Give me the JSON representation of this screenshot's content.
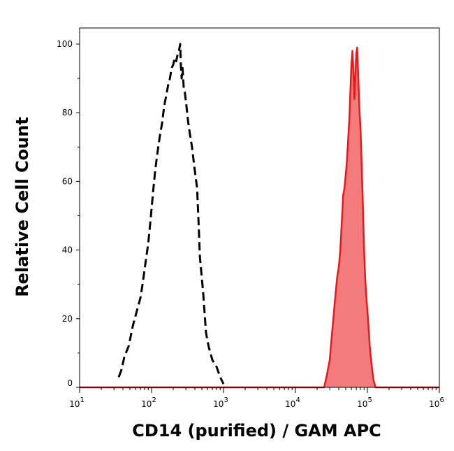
{
  "chart_data": {
    "type": "area",
    "title": "",
    "xlabel": "CD14 (purified) / GAM APC",
    "ylabel": "Relative Cell Count",
    "xscale": "log",
    "xlim": [
      10,
      1000000
    ],
    "ylim": [
      0,
      100
    ],
    "grid": false,
    "legend": "none",
    "x_ticks": [
      {
        "base": "10",
        "exp": "1"
      },
      {
        "base": "10",
        "exp": "2"
      },
      {
        "base": "10",
        "exp": "3"
      },
      {
        "base": "10",
        "exp": "4"
      },
      {
        "base": "10",
        "exp": "5"
      },
      {
        "base": "10",
        "exp": "6"
      }
    ],
    "y_ticks": [
      "0",
      "20",
      "40",
      "60",
      "80",
      "100"
    ],
    "series": [
      {
        "style": "dashed",
        "color": "#000000",
        "filled": false,
        "points": [
          [
            35,
            3
          ],
          [
            38,
            5
          ],
          [
            42,
            9
          ],
          [
            48,
            12
          ],
          [
            55,
            18
          ],
          [
            62,
            22
          ],
          [
            70,
            26
          ],
          [
            75,
            30
          ],
          [
            82,
            36
          ],
          [
            90,
            42
          ],
          [
            98,
            50
          ],
          [
            105,
            57
          ],
          [
            112,
            63
          ],
          [
            120,
            68
          ],
          [
            130,
            73
          ],
          [
            140,
            77
          ],
          [
            150,
            82
          ],
          [
            160,
            85
          ],
          [
            170,
            88
          ],
          [
            180,
            90
          ],
          [
            190,
            93
          ],
          [
            200,
            94
          ],
          [
            210,
            96
          ],
          [
            220,
            95
          ],
          [
            230,
            97
          ],
          [
            240,
            98
          ],
          [
            250,
            100
          ],
          [
            255,
            94
          ],
          [
            262,
            90
          ],
          [
            270,
            93
          ],
          [
            280,
            87
          ],
          [
            290,
            86
          ],
          [
            305,
            82
          ],
          [
            320,
            78
          ],
          [
            340,
            74
          ],
          [
            365,
            70
          ],
          [
            395,
            64
          ],
          [
            430,
            58
          ],
          [
            450,
            48
          ],
          [
            470,
            38
          ],
          [
            520,
            28
          ],
          [
            570,
            16
          ],
          [
            620,
            12
          ],
          [
            700,
            8
          ],
          [
            800,
            6
          ],
          [
            900,
            3
          ],
          [
            1000,
            1
          ]
        ]
      },
      {
        "style": "solid",
        "color": "#e8191b",
        "fill": "#f47b7c",
        "filled": true,
        "points": [
          [
            10,
            0
          ],
          [
            25000,
            0
          ],
          [
            27000,
            3
          ],
          [
            30000,
            8
          ],
          [
            32000,
            15
          ],
          [
            34000,
            21
          ],
          [
            36000,
            27
          ],
          [
            38000,
            32
          ],
          [
            40000,
            35
          ],
          [
            42000,
            40
          ],
          [
            44000,
            48
          ],
          [
            46000,
            56
          ],
          [
            48000,
            58
          ],
          [
            50000,
            62
          ],
          [
            52000,
            66
          ],
          [
            54000,
            72
          ],
          [
            56000,
            78
          ],
          [
            58000,
            86
          ],
          [
            60000,
            94
          ],
          [
            62000,
            98
          ],
          [
            64000,
            92
          ],
          [
            66000,
            84
          ],
          [
            68000,
            90
          ],
          [
            70000,
            97
          ],
          [
            72000,
            99
          ],
          [
            74000,
            93
          ],
          [
            76000,
            86
          ],
          [
            78000,
            80
          ],
          [
            80000,
            76
          ],
          [
            82000,
            70
          ],
          [
            84000,
            62
          ],
          [
            86000,
            55
          ],
          [
            88000,
            47
          ],
          [
            90000,
            40
          ],
          [
            93000,
            32
          ],
          [
            97000,
            26
          ],
          [
            102000,
            20
          ],
          [
            108000,
            12
          ],
          [
            115000,
            6
          ],
          [
            122000,
            2
          ],
          [
            130000,
            0
          ],
          [
            1000000,
            0
          ]
        ]
      }
    ]
  }
}
